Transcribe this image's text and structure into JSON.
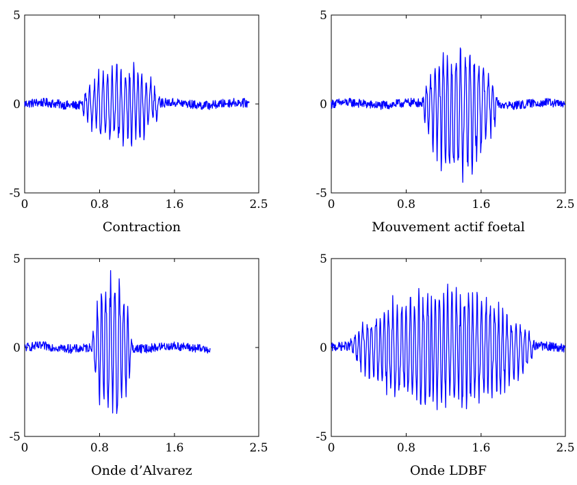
{
  "chart_data": [
    {
      "type": "line",
      "title": "",
      "xlabel": "Contraction",
      "ylabel": "",
      "xlim": [
        0,
        2.5
      ],
      "ylim": [
        -5,
        5
      ],
      "xticks": [
        "0",
        "0.8",
        "1.6",
        "2.5"
      ],
      "yticks": [
        "5",
        "0",
        "-5"
      ],
      "grid": false,
      "series": [
        {
          "color": "#0000ff",
          "signal": {
            "x_end": 2.4,
            "burst_start": 0.6,
            "burst_end": 1.45,
            "amplitude": 2.6,
            "noise": 0.25
          }
        }
      ]
    },
    {
      "type": "line",
      "title": "",
      "xlabel": "Mouvement actif foetal",
      "ylabel": "",
      "xlim": [
        0,
        2.5
      ],
      "ylim": [
        -5,
        5
      ],
      "xticks": [
        "0",
        "0.8",
        "1.6",
        "2.5"
      ],
      "yticks": [
        "5",
        "0",
        "-5"
      ],
      "grid": false,
      "series": [
        {
          "color": "#0000ff",
          "signal": {
            "x_end": 2.5,
            "burst_start": 0.97,
            "burst_end": 1.78,
            "amplitude": 3.4,
            "min": -4.6,
            "noise": 0.25
          }
        }
      ]
    },
    {
      "type": "line",
      "title": "",
      "xlabel": "Onde d’Alvarez",
      "ylabel": "",
      "xlim": [
        0,
        2.5
      ],
      "ylim": [
        -5,
        5
      ],
      "xticks": [
        "0",
        "0.8",
        "1.6",
        "2.5"
      ],
      "yticks": [
        "5",
        "0",
        "-5"
      ],
      "grid": false,
      "series": [
        {
          "color": "#0000ff",
          "signal": {
            "x_end": 1.98,
            "burst_start": 0.72,
            "burst_end": 1.15,
            "amplitude": 4.5,
            "noise": 0.25
          }
        }
      ]
    },
    {
      "type": "line",
      "title": "",
      "xlabel": "Onde LDBF",
      "ylabel": "",
      "xlim": [
        0,
        2.5
      ],
      "ylim": [
        -5,
        5
      ],
      "xticks": [
        "0",
        "0.8",
        "1.6",
        "2.5"
      ],
      "yticks": [
        "5",
        "0",
        "-5"
      ],
      "grid": false,
      "series": [
        {
          "color": "#0000ff",
          "signal": {
            "x_end": 2.5,
            "burst_start": 0.2,
            "burst_end": 2.18,
            "amplitude": 3.6,
            "min": -3.8,
            "noise": 0.25
          }
        }
      ]
    }
  ]
}
